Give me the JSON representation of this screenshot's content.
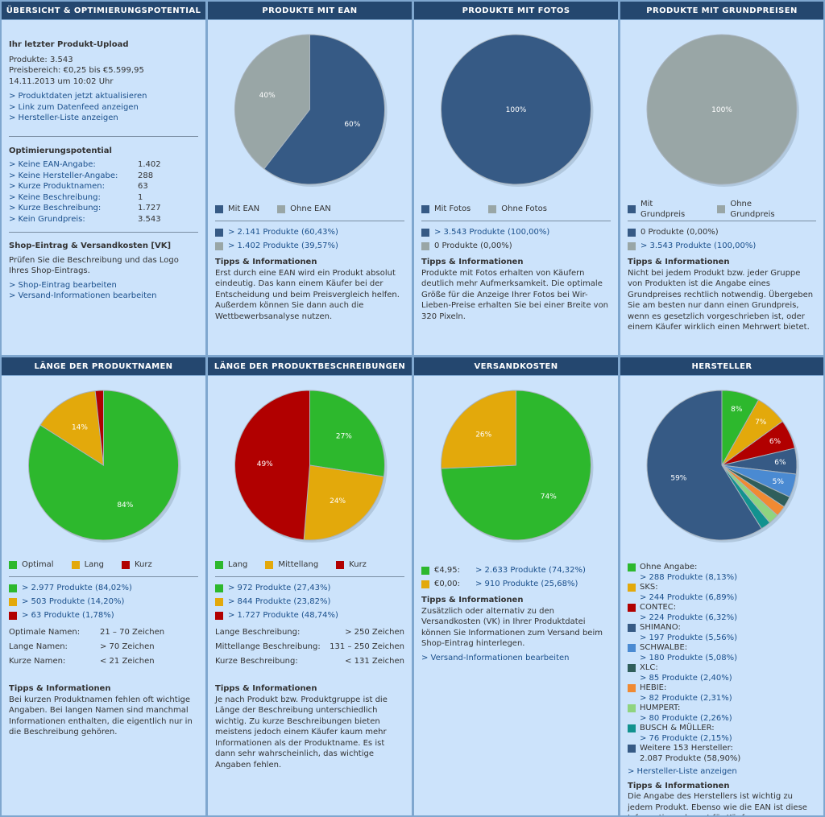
{
  "colors": {
    "navy": "#365a85",
    "gray": "#99a6a6",
    "green": "#2db82d",
    "gold": "#e3a90b",
    "red": "#b10000",
    "blue": "#4a8ad2",
    "darkteal": "#2f5e5b",
    "orange": "#f08a33",
    "lightgreen": "#8fd47f",
    "teal": "#12928f"
  },
  "overview": {
    "title": "ÜBERSICHT & OPTIMIERUNGSPOTENTIAL",
    "upload_heading": "Ihr letzter Produkt-Upload",
    "produkte": "Produkte: 3.543",
    "preisbereich": "Preisbereich: €0,25 bis €5.599,95",
    "datum": "14.11.2013 um 10:02 Uhr",
    "links": [
      "> Produktdaten jetzt aktualisieren",
      "> Link zum Datenfeed anzeigen",
      "> Hersteller-Liste anzeigen"
    ],
    "opt_heading": "Optimierungspotential",
    "opt_items": [
      {
        "label": "> Keine EAN-Angabe:",
        "value": "1.402"
      },
      {
        "label": "> Keine Hersteller-Angabe:",
        "value": "288"
      },
      {
        "label": "> Kurze Produktnamen:",
        "value": "63"
      },
      {
        "label": "> Keine Beschreibung:",
        "value": "1"
      },
      {
        "label": "> Kurze Beschreibung:",
        "value": "1.727"
      },
      {
        "label": "> Kein Grundpreis:",
        "value": "3.543"
      }
    ],
    "shop_heading": "Shop-Eintrag & Versandkosten [VK]",
    "shop_text": "Prüfen Sie die Beschreibung und das Logo Ihres Shop-Eintrags.",
    "shop_links": [
      "> Shop-Eintrag bearbeiten",
      "> Versand-Informationen bearbeiten"
    ]
  },
  "ean": {
    "title": "PRODUKTE MIT EAN",
    "legend": [
      "Mit EAN",
      "Ohne EAN"
    ],
    "stats": [
      "> 2.141 Produkte (60,43%)",
      "> 1.402 Produkte (39,57%)"
    ],
    "tips_heading": "Tipps & Informationen",
    "tips": "Erst durch eine EAN wird ein Produkt absolut eindeutig. Das kann einem Käufer bei der Entscheidung und beim Preisvergleich helfen. Außerdem können Sie dann auch die Wettbewerbsanalyse nutzen."
  },
  "fotos": {
    "title": "PRODUKTE MIT FOTOS",
    "legend": [
      "Mit Fotos",
      "Ohne Fotos"
    ],
    "stats": [
      "> 3.543 Produkte (100,00%)",
      "0 Produkte (0,00%)"
    ],
    "tips_heading": "Tipps & Informationen",
    "tips": "Produkte mit Fotos erhalten von Käufern deutlich mehr Aufmerksamkeit. Die optimale Größe für die Anzeige Ihrer Fotos bei Wir-Lieben-Preise erhalten Sie bei einer Breite von 320 Pixeln."
  },
  "grundpreise": {
    "title": "PRODUKTE MIT GRUNDPREISEN",
    "legend": [
      "Mit Grundpreis",
      "Ohne Grundpreis"
    ],
    "stats": [
      "0 Produkte (0,00%)",
      "> 3.543 Produkte (100,00%)"
    ],
    "tips_heading": "Tipps & Informationen",
    "tips": "Nicht bei jedem Produkt bzw. jeder Gruppe von Produkten ist die Angabe eines Grundpreises rechtlich notwendig. Übergeben Sie am besten nur dann einen Grundpreis, wenn es gesetzlich vorgeschrieben ist, oder einem Käufer wirklich einen Mehrwert bietet."
  },
  "namen": {
    "title": "LÄNGE DER PRODUKTNAMEN",
    "legend": [
      "Optimal",
      "Lang",
      "Kurz"
    ],
    "stats": [
      "> 2.977 Produkte (84,02%)",
      "> 503 Produkte (14,20%)",
      "> 63 Produkte (1,78%)"
    ],
    "rules": [
      {
        "label": "Optimale Namen:",
        "value": "21 – 70 Zeichen"
      },
      {
        "label": "Lange Namen:",
        "value": "> 70 Zeichen"
      },
      {
        "label": "Kurze Namen:",
        "value": "< 21 Zeichen"
      }
    ],
    "tips_heading": "Tipps & Informationen",
    "tips": "Bei kurzen Produktnamen fehlen oft wichtige Angaben. Bei langen Namen sind manchmal Informationen enthalten, die eigentlich nur in die Beschreibung gehören."
  },
  "beschreibung": {
    "title": "LÄNGE DER PRODUKTBESCHREIBUNGEN",
    "legend": [
      "Lang",
      "Mittellang",
      "Kurz"
    ],
    "stats": [
      "> 972 Produkte (27,43%)",
      "> 844 Produkte (23,82%)",
      "> 1.727 Produkte (48,74%)"
    ],
    "rules": [
      {
        "label": "Lange Beschreibung:",
        "value": "> 250 Zeichen"
      },
      {
        "label": "Mittellange Beschreibung:",
        "value": "131 – 250 Zeichen"
      },
      {
        "label": "Kurze Beschreibung:",
        "value": "< 131 Zeichen"
      }
    ],
    "tips_heading": "Tipps & Informationen",
    "tips": "Je nach Produkt bzw. Produktgruppe ist die Länge der Beschreibung unterschiedlich wichtig. Zu kurze Beschreibungen bieten meistens jedoch einem Käufer kaum mehr Informationen als der Produktname. Es ist dann sehr wahrscheinlich, das wichtige Angaben fehlen."
  },
  "versand": {
    "title": "VERSANDKOSTEN",
    "rows": [
      {
        "label": "€4,95:",
        "value": "> 2.633 Produkte (74,32%)"
      },
      {
        "label": "€0,00:",
        "value": "> 910 Produkte (25,68%)"
      }
    ],
    "tips_heading": "Tipps & Informationen",
    "tips": "Zusätzlich oder alternativ zu den Versandkosten (VK) in Ihrer Produktdatei können Sie Informationen zum Versand beim Shop-Eintrag hinterlegen.",
    "link": "> Versand-Informationen bearbeiten"
  },
  "hersteller": {
    "title": "HERSTELLER",
    "items": [
      {
        "name": "Ohne Angabe:",
        "value": "> 288 Produkte (8,13%)"
      },
      {
        "name": "SKS:",
        "value": "> 244 Produkte (6,89%)"
      },
      {
        "name": "CONTEC:",
        "value": "> 224 Produkte (6,32%)"
      },
      {
        "name": "SHIMANO:",
        "value": "> 197 Produkte (5,56%)"
      },
      {
        "name": "SCHWALBE:",
        "value": "> 180 Produkte (5,08%)"
      },
      {
        "name": "XLC:",
        "value": "> 85 Produkte (2,40%)"
      },
      {
        "name": "HEBIE:",
        "value": "> 82 Produkte (2,31%)"
      },
      {
        "name": "HUMPERT:",
        "value": "> 80 Produkte (2,26%)"
      },
      {
        "name": "BUSCH & MÜLLER:",
        "value": "> 76 Produkte (2,15%)"
      },
      {
        "name": "Weitere 153 Hersteller:",
        "value": "2.087 Produkte (58,90%)"
      }
    ],
    "link": "> Hersteller-Liste anzeigen",
    "tips_heading": "Tipps & Informationen",
    "tips": "Die Angabe des Herstellers ist wichtig zu jedem Produkt. Ebenso wie die EAN ist diese Information relevant für Käufer."
  },
  "chart_data": [
    {
      "type": "pie",
      "id": "ean",
      "labels": [
        "Mit EAN",
        "Ohne EAN"
      ],
      "values": [
        60.43,
        39.57
      ],
      "slice_labels": [
        "60%",
        "40%"
      ],
      "colors": [
        "#365a85",
        "#99a6a6"
      ]
    },
    {
      "type": "pie",
      "id": "fotos",
      "labels": [
        "Mit Fotos",
        "Ohne Fotos"
      ],
      "values": [
        100,
        0
      ],
      "slice_labels": [
        "100%",
        ""
      ],
      "colors": [
        "#365a85",
        "#99a6a6"
      ]
    },
    {
      "type": "pie",
      "id": "grundpreise",
      "labels": [
        "Mit Grundpreis",
        "Ohne Grundpreis"
      ],
      "values": [
        0,
        100
      ],
      "slice_labels": [
        "",
        "100%"
      ],
      "colors": [
        "#365a85",
        "#99a6a6"
      ]
    },
    {
      "type": "pie",
      "id": "namen",
      "labels": [
        "Optimal",
        "Lang",
        "Kurz"
      ],
      "values": [
        84.02,
        14.2,
        1.78
      ],
      "slice_labels": [
        "84%",
        "14%",
        ""
      ],
      "colors": [
        "#2db82d",
        "#e3a90b",
        "#b10000"
      ]
    },
    {
      "type": "pie",
      "id": "beschreibung",
      "labels": [
        "Lang",
        "Mittellang",
        "Kurz"
      ],
      "values": [
        27.43,
        23.82,
        48.74
      ],
      "slice_labels": [
        "27%",
        "24%",
        "49%"
      ],
      "colors": [
        "#2db82d",
        "#e3a90b",
        "#b10000"
      ]
    },
    {
      "type": "pie",
      "id": "versand",
      "labels": [
        "€4,95",
        "€0,00"
      ],
      "values": [
        74.32,
        25.68
      ],
      "slice_labels": [
        "74%",
        "26%"
      ],
      "colors": [
        "#2db82d",
        "#e3a90b"
      ]
    },
    {
      "type": "pie",
      "id": "hersteller",
      "labels": [
        "Ohne Angabe",
        "SKS",
        "CONTEC",
        "SHIMANO",
        "SCHWALBE",
        "XLC",
        "HEBIE",
        "HUMPERT",
        "BUSCH & MÜLLER",
        "Weitere 153 Hersteller"
      ],
      "values": [
        8.13,
        6.89,
        6.32,
        5.56,
        5.08,
        2.4,
        2.31,
        2.26,
        2.15,
        58.9
      ],
      "slice_labels": [
        "8%",
        "7%",
        "6%",
        "6%",
        "5%",
        "",
        "",
        "",
        "",
        "59%"
      ],
      "colors": [
        "#2db82d",
        "#e3a90b",
        "#b10000",
        "#365a85",
        "#4a8ad2",
        "#2f5e5b",
        "#f08a33",
        "#8fd47f",
        "#12928f",
        "#365a85"
      ]
    }
  ]
}
